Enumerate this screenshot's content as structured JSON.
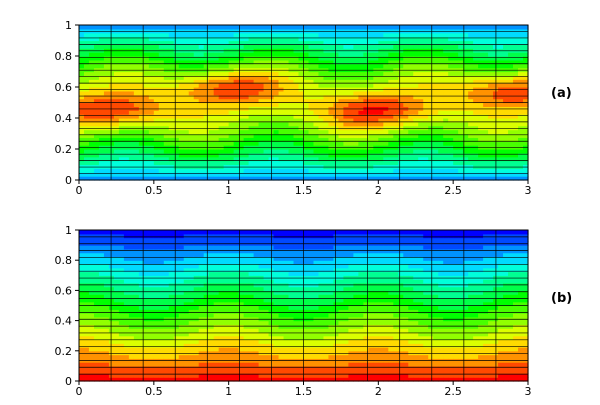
{
  "chart_data": [
    {
      "type": "heatmap",
      "panel_label": "(a)",
      "x_ticks": [
        "0",
        "0.5",
        "1",
        "1.5",
        "2",
        "2.5",
        "3"
      ],
      "y_ticks": [
        "0",
        "0.2",
        "0.4",
        "0.6",
        "0.8",
        "1"
      ],
      "xlim": [
        0,
        3
      ],
      "ylim": [
        0,
        1
      ],
      "field": "hot core in the middle band, cool at top and bottom walls",
      "hot_spots": [
        {
          "x": 0.2,
          "y": 0.45
        },
        {
          "x": 1.0,
          "y": 0.6
        },
        {
          "x": 2.0,
          "y": 0.45
        },
        {
          "x": 2.9,
          "y": 0.58
        }
      ],
      "mesh": {
        "x_cells": 14,
        "y_cells": 24
      },
      "colormap": [
        "#0000ff",
        "#00ffff",
        "#00ff00",
        "#ffff00",
        "#ff0000"
      ]
    },
    {
      "type": "heatmap",
      "panel_label": "(b)",
      "x_ticks": [
        "0",
        "0.5",
        "1",
        "1.5",
        "2",
        "2.5",
        "3"
      ],
      "y_ticks": [
        "0",
        "0.2",
        "0.4",
        "0.6",
        "0.8",
        "1"
      ],
      "xlim": [
        0,
        3
      ],
      "ylim": [
        0,
        1
      ],
      "field": "hot at bottom wall, cold at top wall, weak periodic modulation",
      "mesh": {
        "x_cells": 14,
        "y_cells": 22
      },
      "colormap": [
        "#0000ff",
        "#00ffff",
        "#00ff00",
        "#ffff00",
        "#ff0000"
      ]
    }
  ]
}
